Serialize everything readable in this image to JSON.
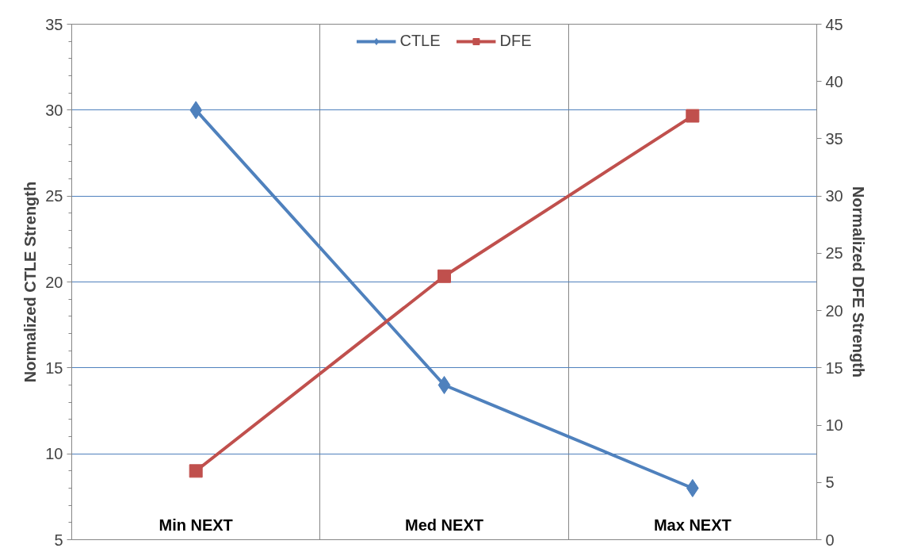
{
  "chart_data": {
    "type": "line",
    "categories": [
      "Min NEXT",
      "Med NEXT",
      "Max NEXT"
    ],
    "ylabel": "Normalized CTLE Strength",
    "y2label": "Normalized DFE Strength",
    "ylim": [
      5,
      35
    ],
    "yticks": [
      5,
      10,
      15,
      20,
      25,
      30,
      35
    ],
    "y2lim": [
      0,
      45
    ],
    "y2ticks": [
      0,
      5,
      10,
      15,
      20,
      25,
      30,
      35,
      40,
      45
    ],
    "grid": true,
    "legend": "top",
    "series": [
      {
        "name": "CTLE",
        "color": "#4f81bd",
        "marker": "diamond",
        "values": [
          30,
          14,
          8
        ]
      },
      {
        "name": "DFE",
        "color": "#c0504d",
        "marker": "square",
        "axis": "y2",
        "values": [
          6,
          23,
          37
        ]
      }
    ]
  }
}
